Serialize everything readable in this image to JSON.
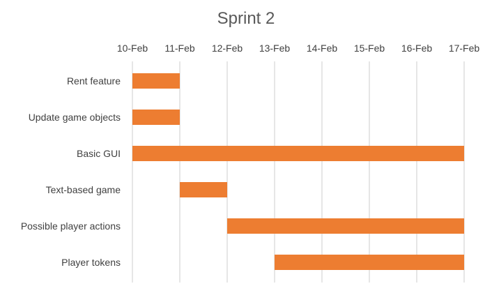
{
  "chart_data": {
    "type": "bar",
    "orientation": "horizontal",
    "stacked": true,
    "title": "Sprint 2",
    "xlabel": "",
    "ylabel": "",
    "x_axis_position": "top",
    "x_ticks": [
      "10-Feb",
      "11-Feb",
      "12-Feb",
      "13-Feb",
      "14-Feb",
      "15-Feb",
      "16-Feb",
      "17-Feb"
    ],
    "xlim": [
      "10-Feb",
      "17-Feb"
    ],
    "grid": true,
    "categories": [
      "Rent feature",
      "Update game objects",
      "Basic GUI",
      "Text-based game",
      "Possible player actions",
      "Player tokens"
    ],
    "start": [
      "10-Feb",
      "10-Feb",
      "10-Feb",
      "11-Feb",
      "12-Feb",
      "13-Feb"
    ],
    "end": [
      "11-Feb",
      "11-Feb",
      "17-Feb",
      "12-Feb",
      "17-Feb",
      "17-Feb"
    ],
    "bar_color": "#ed7d31"
  }
}
